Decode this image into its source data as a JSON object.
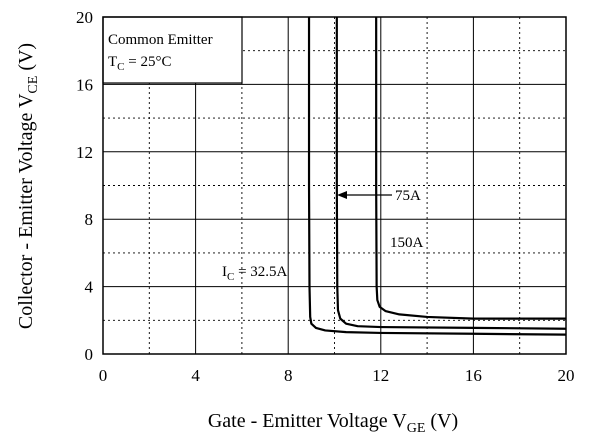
{
  "chart_data": {
    "type": "line",
    "xlabel": {
      "main": "Gate - Emitter Voltage  V",
      "sub": "GE",
      "tail": " (V)"
    },
    "ylabel": {
      "main": "Collector - Emitter Voltage  V",
      "sub": "CE",
      "tail": " (V)"
    },
    "xlim": [
      0,
      20
    ],
    "ylim": [
      0,
      20
    ],
    "xticks": [
      "0",
      "4",
      "8",
      "12",
      "16",
      "20"
    ],
    "yticks": [
      "0",
      "4",
      "8",
      "12",
      "16",
      "20"
    ],
    "grid": "solid major every 4 V, dotted minor every 2 V",
    "legend_box": {
      "line1": "Common Emitter",
      "line2_main": "T",
      "line2_sub": "C",
      "line2_tail": " = 25°C"
    },
    "series": [
      {
        "name": "I_C = 32.5A",
        "points": [
          [
            8.9,
            20
          ],
          [
            8.9,
            10
          ],
          [
            8.92,
            4
          ],
          [
            8.95,
            2.2
          ],
          [
            9.0,
            1.8
          ],
          [
            9.2,
            1.55
          ],
          [
            9.6,
            1.4
          ],
          [
            10.5,
            1.3
          ],
          [
            12,
            1.25
          ],
          [
            16,
            1.2
          ],
          [
            20,
            1.15
          ]
        ]
      },
      {
        "name": "75A",
        "points": [
          [
            10.1,
            20
          ],
          [
            10.1,
            10
          ],
          [
            10.12,
            4
          ],
          [
            10.15,
            2.6
          ],
          [
            10.25,
            2.1
          ],
          [
            10.5,
            1.8
          ],
          [
            11,
            1.65
          ],
          [
            12,
            1.6
          ],
          [
            16,
            1.55
          ],
          [
            20,
            1.5
          ]
        ]
      },
      {
        "name": "150A",
        "points": [
          [
            11.8,
            20
          ],
          [
            11.8,
            10
          ],
          [
            11.82,
            4
          ],
          [
            11.85,
            3.2
          ],
          [
            11.95,
            2.8
          ],
          [
            12.2,
            2.55
          ],
          [
            12.8,
            2.35
          ],
          [
            14,
            2.2
          ],
          [
            16,
            2.1
          ],
          [
            18,
            2.1
          ],
          [
            20,
            2.1
          ]
        ]
      }
    ],
    "annotations": {
      "ic_main": "I",
      "ic_sub": "C",
      "ic_tail": " = 32.5A",
      "label_75": "75A",
      "label_150": "150A"
    }
  }
}
